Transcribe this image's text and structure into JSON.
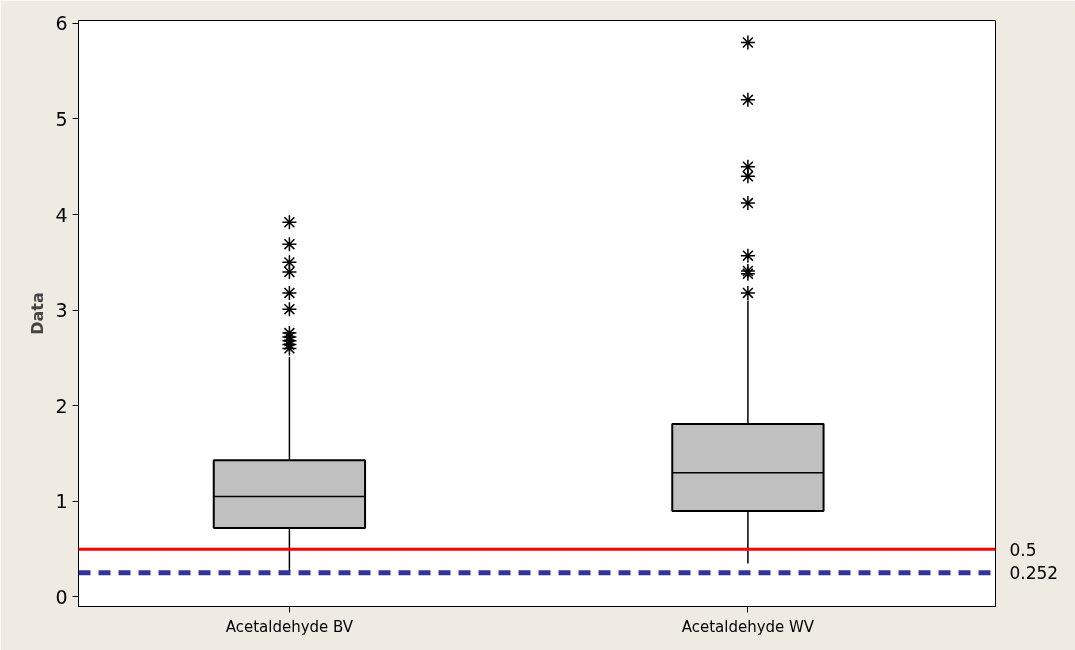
{
  "chart_data": {
    "type": "box",
    "ylabel": "Data",
    "categories": [
      "Acetaldehyde BV",
      "Acetaldehyde WV"
    ],
    "boxes": [
      {
        "low": 0.26,
        "q1": 0.72,
        "median": 1.05,
        "q3": 1.43,
        "high": 2.51,
        "outliers": [
          2.6,
          2.64,
          2.68,
          2.72,
          2.76,
          3.01,
          3.18,
          3.4,
          3.5,
          3.69,
          3.92
        ]
      },
      {
        "low": 0.35,
        "q1": 0.9,
        "median": 1.3,
        "q3": 1.81,
        "high": 3.1,
        "outliers": [
          3.18,
          3.38,
          3.41,
          3.57,
          4.12,
          4.4,
          4.5,
          5.2,
          5.8
        ]
      }
    ],
    "color": "#c0c0c0",
    "marker": "star",
    "ylim": [
      -0.1,
      6.03
    ],
    "yticks": [
      0,
      1,
      2,
      3,
      4,
      5,
      6
    ],
    "grid": false,
    "ref_lines": [
      {
        "axis": "y",
        "value": 0.5,
        "label": "0.5",
        "color": "#ff0000",
        "line_style": "solid"
      },
      {
        "axis": "y",
        "value": 0.252,
        "label": "0.252",
        "color": "#333399",
        "line_style": "dashed"
      }
    ]
  }
}
